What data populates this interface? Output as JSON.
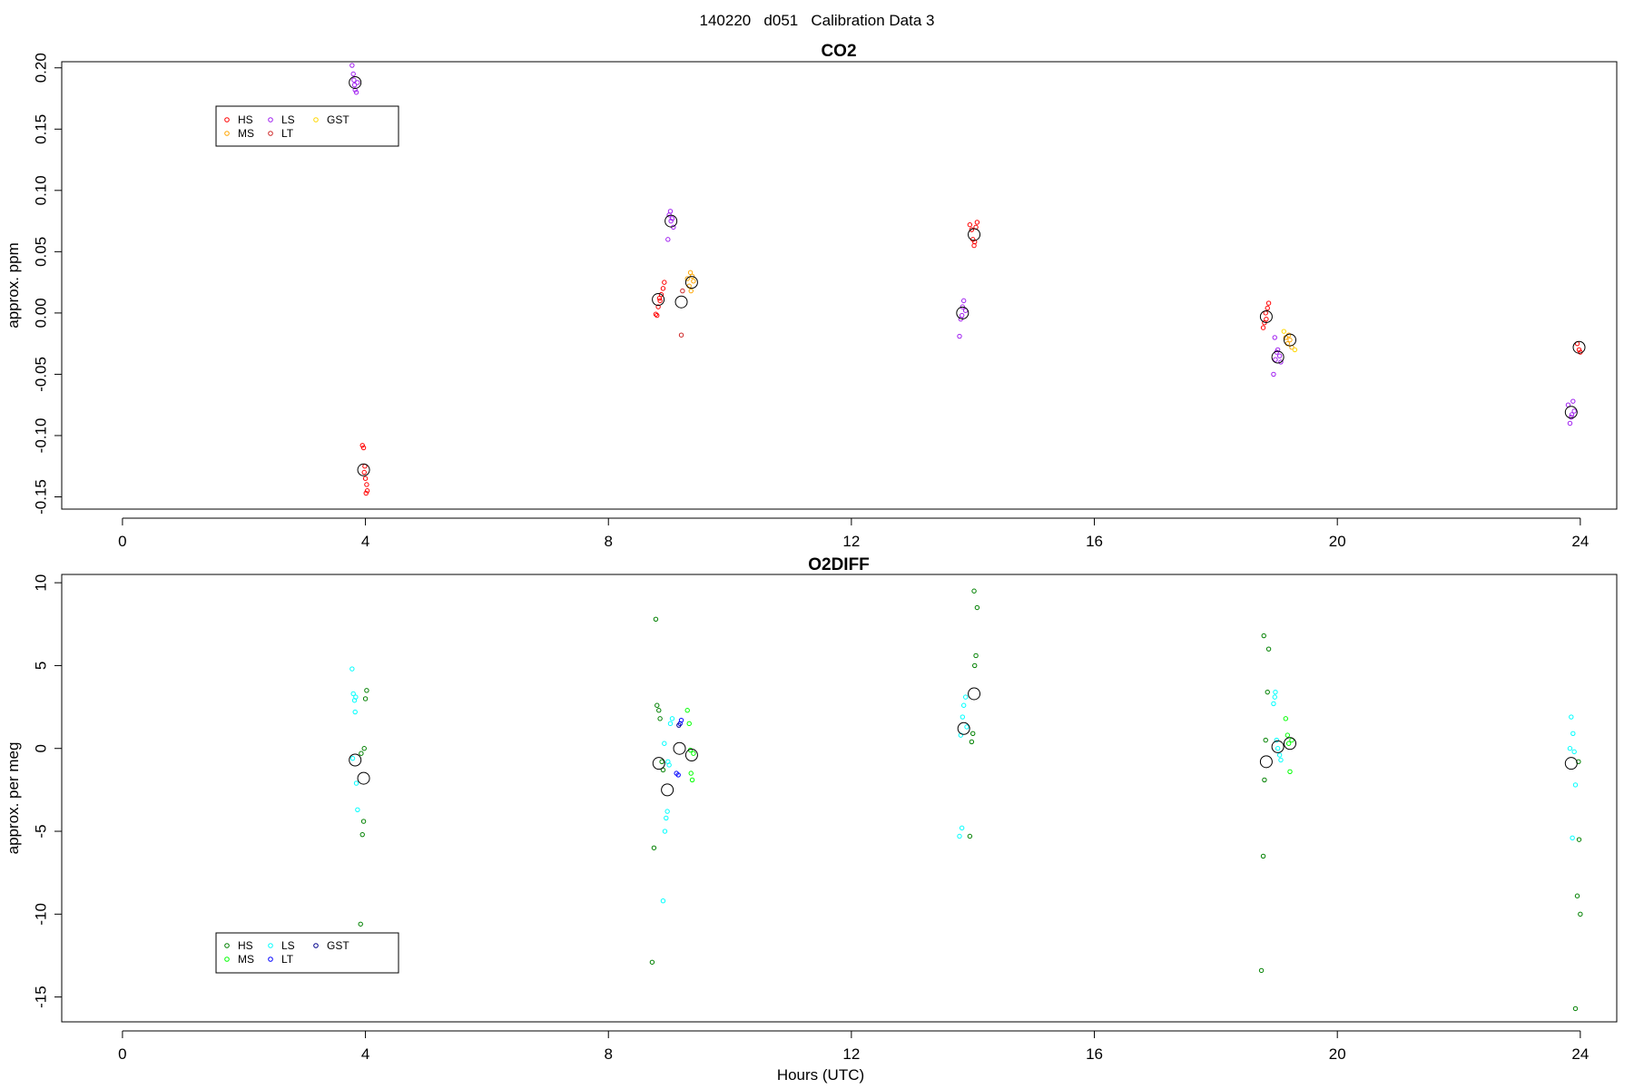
{
  "figure_title": "140220   d051   Calibration Data 3",
  "chart_data": [
    {
      "type": "scatter",
      "title": "CO2",
      "xlabel": "",
      "ylabel": "approx. ppm",
      "xlim": [
        -1,
        24.6
      ],
      "ylim": [
        -0.16,
        0.205
      ],
      "xticks": [
        0,
        4,
        8,
        12,
        16,
        20,
        24
      ],
      "yticks": [
        -0.15,
        -0.1,
        -0.05,
        0.0,
        0.05,
        0.1,
        0.15,
        0.2
      ],
      "ytick_labels": [
        "-0.15",
        "-0.10",
        "-0.05",
        "0.00",
        "0.05",
        "0.10",
        "0.15",
        "0.20"
      ],
      "legend": {
        "placement": "upper-left",
        "entries": [
          {
            "label": "HS",
            "color": "#ff0000"
          },
          {
            "label": "MS",
            "color": "#ffa500"
          },
          {
            "label": "LS",
            "color": "#a020f0"
          },
          {
            "label": "LT",
            "color": "#cd2626"
          },
          {
            "label": "GST",
            "color": "#ffd700"
          }
        ]
      },
      "series": [
        {
          "color": "#ff0000",
          "x": [
            3.95,
            3.97,
            3.99,
            4.0,
            4.02,
            4.03,
            3.98,
            4.01,
            8.8,
            8.82,
            8.85,
            8.87,
            8.9,
            8.92,
            8.78,
            8.84,
            13.95,
            13.98,
            14.0,
            14.02,
            14.05,
            14.07,
            14.03,
            18.78,
            18.8,
            18.82,
            18.85,
            18.87,
            18.83,
            23.95,
            23.98,
            24.0
          ],
          "y": [
            -0.108,
            -0.11,
            -0.125,
            -0.135,
            -0.14,
            -0.145,
            -0.13,
            -0.147,
            -0.002,
            0.005,
            0.01,
            0.015,
            0.02,
            0.025,
            -0.001,
            0.012,
            0.072,
            0.068,
            0.06,
            0.055,
            0.07,
            0.074,
            0.058,
            -0.012,
            -0.008,
            0.0,
            0.004,
            0.008,
            -0.005,
            -0.025,
            -0.03,
            -0.032
          ]
        },
        {
          "color": "#a020f0",
          "x": [
            3.78,
            3.8,
            3.82,
            3.83,
            3.85,
            3.87,
            3.81,
            9.0,
            9.02,
            9.05,
            9.07,
            8.98,
            9.03,
            13.78,
            13.8,
            13.83,
            13.85,
            13.88,
            13.82,
            18.95,
            18.98,
            19.0,
            19.02,
            19.05,
            19.07,
            18.97,
            23.8,
            23.83,
            23.85,
            23.88,
            23.9,
            23.86
          ],
          "y": [
            0.202,
            0.195,
            0.186,
            0.182,
            0.18,
            0.188,
            0.19,
            0.08,
            0.083,
            0.077,
            0.07,
            0.06,
            0.075,
            -0.019,
            -0.005,
            0.005,
            0.01,
            0.002,
            -0.002,
            -0.05,
            -0.038,
            -0.032,
            -0.03,
            -0.035,
            -0.04,
            -0.02,
            -0.075,
            -0.09,
            -0.085,
            -0.072,
            -0.08,
            -0.083
          ]
        },
        {
          "color": "#ffa500",
          "x": [
            9.3,
            9.33,
            9.36,
            9.38,
            9.4,
            9.35,
            19.15,
            19.18,
            19.2,
            19.22,
            19.25
          ],
          "y": [
            0.028,
            0.022,
            0.018,
            0.03,
            0.026,
            0.033,
            -0.02,
            -0.025,
            -0.018,
            -0.022,
            -0.028
          ]
        },
        {
          "color": "#cd2626",
          "x": [
            9.2,
            9.22
          ],
          "y": [
            -0.018,
            0.018
          ]
        },
        {
          "color": "#ffd700",
          "x": [
            19.12,
            19.3
          ],
          "y": [
            -0.015,
            -0.03
          ]
        }
      ],
      "means": {
        "color": "#000000",
        "x": [
          3.97,
          3.83,
          8.82,
          9.03,
          9.2,
          9.37,
          14.02,
          13.83,
          18.83,
          19.02,
          19.22,
          23.98,
          23.85
        ],
        "y": [
          -0.128,
          0.188,
          0.011,
          0.075,
          0.009,
          0.025,
          0.064,
          0.0,
          -0.003,
          -0.036,
          -0.022,
          -0.028,
          -0.081
        ]
      }
    },
    {
      "type": "scatter",
      "title": "O2DIFF",
      "xlabel": "Hours (UTC)",
      "ylabel": "approx. per meg",
      "xlim": [
        -1,
        24.6
      ],
      "ylim": [
        -16.5,
        10.5
      ],
      "xticks": [
        0,
        4,
        8,
        12,
        16,
        20,
        24
      ],
      "yticks": [
        -15,
        -10,
        -5,
        0,
        5,
        10
      ],
      "ytick_labels": [
        "-15",
        "-10",
        "-5",
        "0",
        "5",
        "10"
      ],
      "legend": {
        "placement": "lower-left",
        "entries": [
          {
            "label": "HS",
            "color": "#008000"
          },
          {
            "label": "MS",
            "color": "#00ff00"
          },
          {
            "label": "LS",
            "color": "#00ffff"
          },
          {
            "label": "LT",
            "color": "#0000ff"
          },
          {
            "label": "GST",
            "color": "#00008b"
          }
        ]
      },
      "series": [
        {
          "color": "#00ffff",
          "x": [
            3.78,
            3.8,
            3.82,
            3.83,
            3.85,
            3.87,
            3.79,
            3.84,
            8.9,
            8.93,
            8.95,
            8.97,
            9.0,
            9.02,
            9.05,
            8.92,
            8.98,
            13.78,
            13.8,
            13.83,
            13.85,
            13.88,
            13.9,
            13.82,
            18.95,
            18.98,
            19.0,
            19.02,
            19.05,
            19.07,
            18.97,
            23.85,
            23.88,
            23.9,
            23.92,
            23.87,
            23.83
          ],
          "y": [
            4.8,
            3.3,
            2.9,
            2.2,
            -2.1,
            -3.7,
            -0.6,
            3.1,
            -9.2,
            -5.0,
            -4.2,
            -3.8,
            -1.0,
            1.5,
            1.8,
            0.3,
            -0.8,
            -5.3,
            0.8,
            1.9,
            2.6,
            3.1,
            1.3,
            -4.8,
            2.7,
            3.4,
            0.5,
            0.0,
            -0.4,
            -0.7,
            3.1,
            1.9,
            0.9,
            -0.2,
            -2.2,
            -5.4,
            0.0
          ]
        },
        {
          "color": "#008000",
          "x": [
            3.92,
            3.95,
            3.97,
            4.0,
            4.02,
            3.93,
            3.98,
            8.72,
            8.75,
            8.78,
            8.8,
            8.83,
            8.85,
            8.88,
            8.9,
            13.95,
            13.98,
            14.0,
            14.03,
            14.05,
            14.07,
            14.02,
            18.75,
            18.78,
            18.8,
            18.82,
            18.85,
            18.87,
            18.79,
            23.92,
            23.95,
            23.98,
            24.0,
            23.97
          ],
          "y": [
            -10.6,
            -5.2,
            -4.4,
            3.0,
            3.5,
            -0.3,
            0.0,
            -12.9,
            -6.0,
            7.8,
            2.6,
            2.3,
            1.8,
            -0.8,
            -1.3,
            -5.3,
            0.4,
            0.9,
            5.0,
            5.6,
            8.5,
            9.5,
            -13.4,
            -6.5,
            -1.9,
            0.5,
            3.4,
            6.0,
            6.8,
            -15.7,
            -8.9,
            -5.5,
            -10.0,
            -0.8
          ]
        },
        {
          "color": "#00ff00",
          "x": [
            9.3,
            9.33,
            9.36,
            9.38,
            9.4,
            9.35,
            19.15,
            19.18,
            19.2,
            19.22,
            19.25
          ],
          "y": [
            2.3,
            1.5,
            -1.5,
            -1.9,
            -0.3,
            -0.1,
            1.8,
            0.8,
            0.3,
            -1.4,
            0.5
          ]
        },
        {
          "color": "#0000ff",
          "x": [
            9.12,
            9.15,
            9.18,
            9.2
          ],
          "y": [
            -1.5,
            -1.6,
            1.5,
            1.7
          ]
        },
        {
          "color": "#00008b",
          "x": [
            9.16
          ],
          "y": [
            1.4
          ]
        }
      ],
      "means": {
        "color": "#000000",
        "x": [
          3.83,
          3.97,
          8.83,
          8.97,
          9.17,
          9.37,
          13.85,
          14.02,
          18.83,
          19.02,
          19.22,
          23.85
        ],
        "y": [
          -0.7,
          -1.8,
          -0.9,
          -2.5,
          0.0,
          -0.4,
          1.2,
          3.3,
          -0.8,
          0.1,
          0.3,
          -0.9
        ]
      }
    }
  ]
}
